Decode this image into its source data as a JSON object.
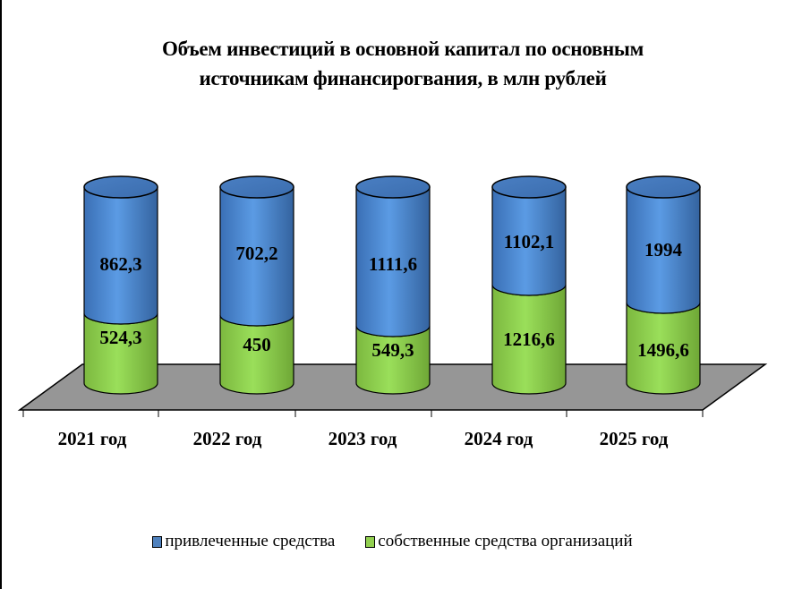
{
  "chart_data": {
    "type": "bar",
    "subtype": "stacked-3d-cylinder",
    "title": "Объем инвестиций в основной капитал по основным источникам финансирогвания, в млн рублей",
    "title_lines": [
      "Объем инвестиций в основной капитал по основным",
      "источникам финансирогвания, в млн рублей"
    ],
    "categories": [
      "2021 год",
      "2022 год",
      "2023 год",
      "2024 год",
      "2025 год"
    ],
    "series": [
      {
        "name": "собственные средства организаций",
        "color": "#92D050",
        "values": [
          524.3,
          450,
          549.3,
          1216.6,
          1496.6
        ],
        "labels": [
          "524,3",
          "450",
          "549,3",
          "1216,6",
          "1496,6"
        ]
      },
      {
        "name": "привлеченные средства",
        "color": "#4F81BD",
        "values": [
          862.3,
          702.2,
          1111.6,
          1102.1,
          1994
        ],
        "labels": [
          "862,3",
          "702,2",
          "1111,6",
          "1102,1",
          "1994"
        ]
      }
    ],
    "xlabel": "",
    "ylabel": "",
    "grid": false,
    "legend_position": "bottom",
    "floor_color": "#969696"
  },
  "legend": [
    {
      "label": "привлеченные средства",
      "color": "#4F81BD"
    },
    {
      "label": "собственные средства организаций",
      "color": "#92D050"
    }
  ]
}
